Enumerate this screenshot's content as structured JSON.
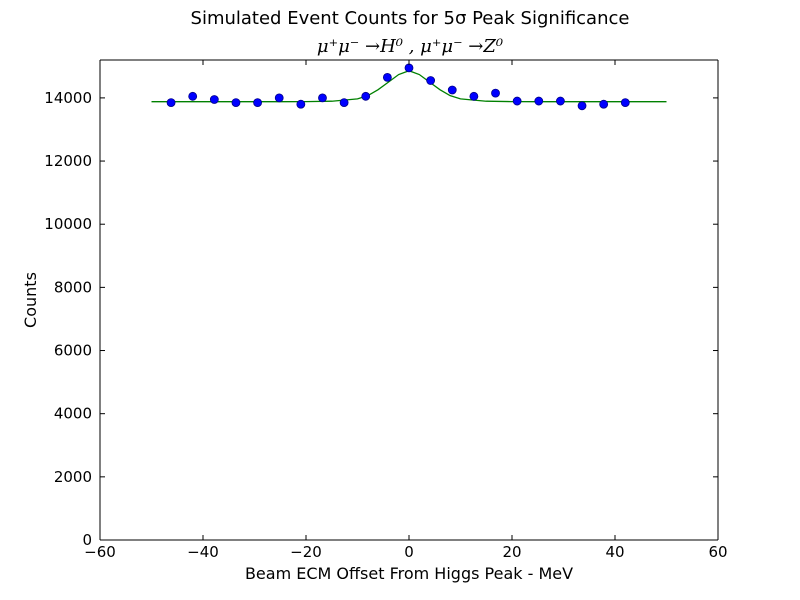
{
  "chart_data": {
    "type": "scatter",
    "title": "Simulated Event Counts for 5σ Peak Significance",
    "subtitle": "μ⁺μ⁻ →H⁰ , μ⁺μ⁻ →Z⁰",
    "xlabel": "Beam ECM Offset From Higgs Peak - MeV",
    "ylabel": "Counts",
    "xlim": [
      -60,
      60
    ],
    "ylim": [
      0,
      15200
    ],
    "x_ticks": [
      -60,
      -40,
      -20,
      0,
      20,
      40,
      60
    ],
    "x_tick_labels": [
      "−60",
      "−40",
      "−20",
      "0",
      "20",
      "40",
      "60"
    ],
    "y_ticks": [
      0,
      2000,
      4000,
      6000,
      8000,
      10000,
      12000,
      14000
    ],
    "y_tick_labels": [
      "0",
      "2000",
      "4000",
      "6000",
      "8000",
      "10000",
      "12000",
      "14000"
    ],
    "grid": false,
    "legend": "none",
    "colors": {
      "points": "#0000ff",
      "points_edge": "#00008b",
      "fit_line": "#008000",
      "axis": "#000000"
    },
    "series": [
      {
        "type": "scatter",
        "x": [
          -46.2,
          -42.0,
          -37.8,
          -33.6,
          -29.4,
          -25.2,
          -21.0,
          -16.8,
          -12.6,
          -8.4,
          -4.2,
          0.0,
          4.2,
          8.4,
          12.6,
          16.8,
          21.0,
          25.2,
          29.4,
          33.6,
          37.8,
          42.0
        ],
        "y": [
          13850,
          14050,
          13950,
          13850,
          13850,
          14000,
          13800,
          14000,
          13850,
          14050,
          14650,
          14950,
          14550,
          14250,
          14050,
          14150,
          13900,
          13900,
          13900,
          13750,
          13800,
          13850
        ]
      },
      {
        "type": "line",
        "x": [
          -50,
          -45,
          -40,
          -35,
          -30,
          -25,
          -20,
          -15,
          -10,
          -8,
          -6,
          -4,
          -2,
          0,
          2,
          4,
          6,
          8,
          10,
          15,
          20,
          25,
          30,
          35,
          40,
          45,
          50
        ],
        "y": [
          13880,
          13880,
          13880,
          13880,
          13880,
          13880,
          13882,
          13895,
          13970,
          14070,
          14260,
          14500,
          14740,
          14860,
          14740,
          14500,
          14260,
          14070,
          13970,
          13895,
          13882,
          13880,
          13880,
          13880,
          13880,
          13880,
          13880
        ]
      }
    ]
  }
}
